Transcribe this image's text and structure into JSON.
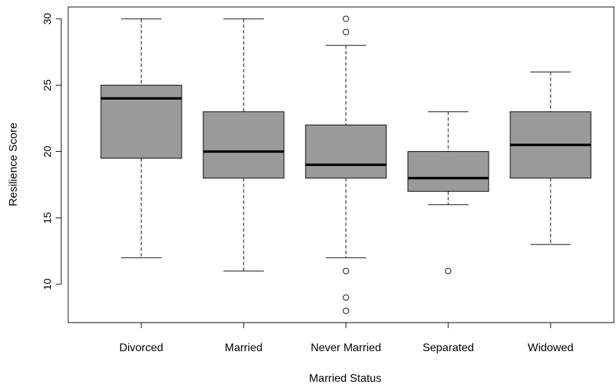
{
  "chart_data": {
    "type": "box",
    "title": "",
    "xlabel": "Married Status",
    "ylabel": "Resilience Score",
    "ylim": [
      7.5,
      31
    ],
    "yticks": [
      10,
      15,
      20,
      25,
      30
    ],
    "categories": [
      "Divorced",
      "Married",
      "Never Married",
      "Separated",
      "Widowed"
    ],
    "boxes": [
      {
        "category": "Divorced",
        "whisker_low": 12,
        "q1": 19.5,
        "median": 24,
        "q3": 25,
        "whisker_high": 30,
        "outliers": []
      },
      {
        "category": "Married",
        "whisker_low": 11,
        "q1": 18,
        "median": 20,
        "q3": 23,
        "whisker_high": 30,
        "outliers": []
      },
      {
        "category": "Never Married",
        "whisker_low": 12,
        "q1": 18,
        "median": 19,
        "q3": 22,
        "whisker_high": 28,
        "outliers": [
          30,
          29,
          11,
          9,
          8
        ]
      },
      {
        "category": "Separated",
        "whisker_low": 16,
        "q1": 17,
        "median": 18,
        "q3": 20,
        "whisker_high": 23,
        "outliers": [
          11
        ]
      },
      {
        "category": "Widowed",
        "whisker_low": 13,
        "q1": 18,
        "median": 20.5,
        "q3": 23,
        "whisker_high": 26,
        "outliers": []
      }
    ],
    "box_color": "#9a9a9a",
    "grid": false,
    "legend": "none"
  }
}
